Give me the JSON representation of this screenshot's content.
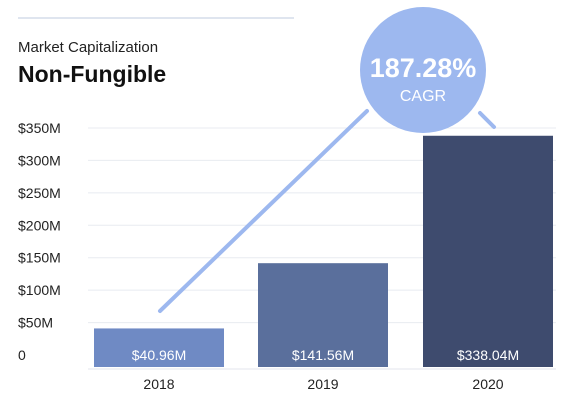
{
  "chart_data": {
    "type": "bar",
    "subtitle": "Market Capitalization",
    "title": "Non-Fungible",
    "categories": [
      "2018",
      "2019",
      "2020"
    ],
    "values": [
      40.96,
      141.56,
      338.04
    ],
    "data_labels": [
      "$40.96M",
      "$141.56M",
      "$338.04M"
    ],
    "y_ticks": [
      0,
      50,
      100,
      150,
      200,
      250,
      300,
      350
    ],
    "y_tick_labels": [
      "0",
      "$50M",
      "$100M",
      "$150M",
      "$200M",
      "$250M",
      "$300M",
      "$350M"
    ],
    "ylim": [
      0,
      350
    ],
    "grid": true,
    "cagr": {
      "value": "187.28%",
      "label": "CAGR"
    },
    "bar_colors": [
      "#6f8ac4",
      "#5a6f9c",
      "#3e4b6e"
    ],
    "accent_color": "#9db8ef"
  }
}
